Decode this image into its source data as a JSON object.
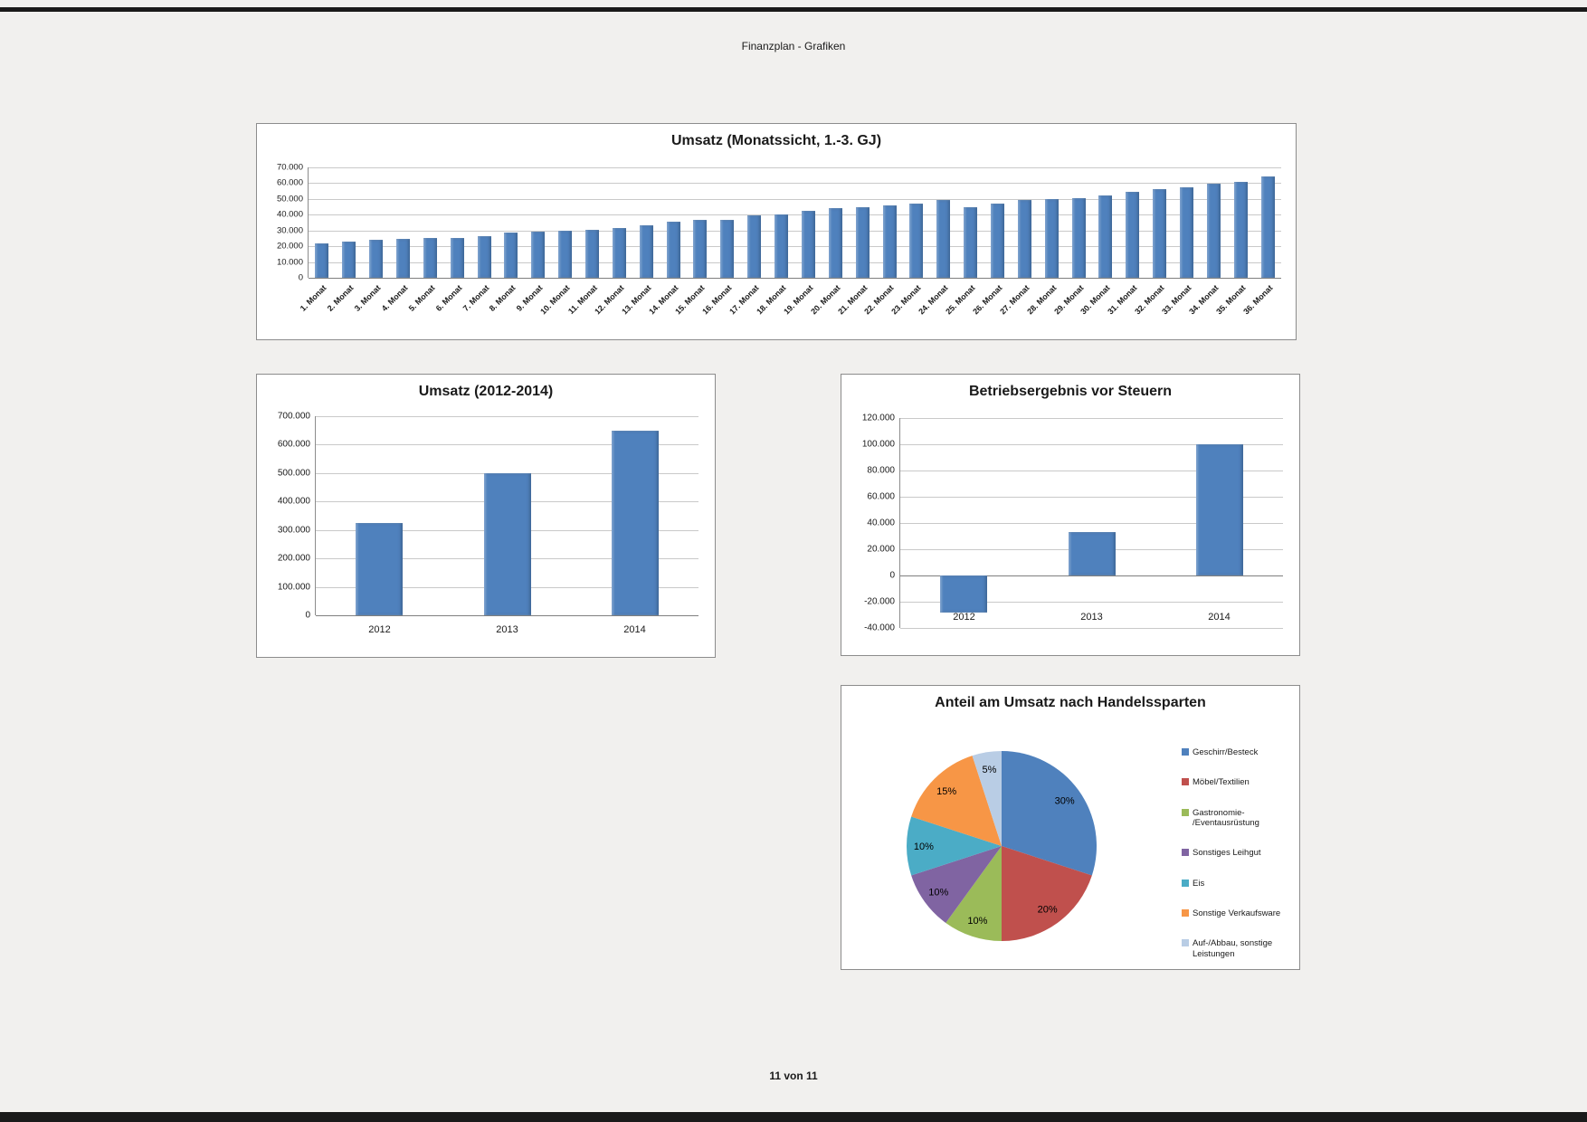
{
  "page": {
    "header_title": "Finanzplan - Grafiken",
    "footer_text": "11 von 11",
    "background_color": "#f1f0ee",
    "rule_color": "#1a1a1a",
    "accent_bar_color": "#4f81bd"
  },
  "chart_data": [
    {
      "id": "umsatz-monthly",
      "type": "bar",
      "title": "Umsatz (Monatssicht, 1.-3. GJ)",
      "categories": [
        "1. Monat",
        "2. Monat",
        "3. Monat",
        "4. Monat",
        "5. Monat",
        "6. Monat",
        "7. Monat",
        "8. Monat",
        "9. Monat",
        "10. Monat",
        "11. Monat",
        "12. Monat",
        "13. Monat",
        "14. Monat",
        "15. Monat",
        "16. Monat",
        "17. Monat",
        "18. Monat",
        "19. Monat",
        "20. Monat",
        "21. Monat",
        "22. Monat",
        "23. Monat",
        "24. Monat",
        "25. Monat",
        "26. Monat",
        "27. Monat",
        "28. Monat",
        "29. Monat",
        "30. Monat",
        "31. Monat",
        "32. Monat",
        "33. Monat",
        "34. Monat",
        "35. Monat",
        "36. Monat"
      ],
      "values": [
        22000,
        23000,
        24000,
        24500,
        25000,
        25500,
        26500,
        28500,
        29500,
        30000,
        30500,
        31500,
        33500,
        35500,
        36500,
        37000,
        39500,
        40000,
        42500,
        44000,
        44500,
        46000,
        47000,
        49500,
        45000,
        47000,
        49500,
        50000,
        50500,
        52500,
        54500,
        56000,
        57500,
        59500,
        61000,
        64500
      ],
      "ylim": [
        0,
        70000
      ],
      "ytick_step": 10000,
      "ytick_labels": [
        "70.000",
        "60.000",
        "50.000",
        "40.000",
        "30.000",
        "20.000",
        "10.000",
        "0"
      ],
      "grid": true,
      "legend": false,
      "bar_color": "#4f81bd",
      "x_label_rotation": -45
    },
    {
      "id": "umsatz-yearly",
      "type": "bar",
      "title": "Umsatz (2012-2014)",
      "categories": [
        "2012",
        "2013",
        "2014"
      ],
      "values": [
        325000,
        500000,
        650000
      ],
      "ylim": [
        0,
        700000
      ],
      "ytick_step": 100000,
      "ytick_labels": [
        "700.000",
        "600.000",
        "500.000",
        "400.000",
        "300.000",
        "200.000",
        "100.000",
        "0"
      ],
      "grid": true,
      "legend": false,
      "bar_color": "#4f81bd",
      "x_label_rotation": 0
    },
    {
      "id": "betriebsergebnis-vor-steuern",
      "type": "bar",
      "title": "Betriebsergebnis vor Steuern",
      "categories": [
        "2012",
        "2013",
        "2014"
      ],
      "values": [
        -28000,
        33000,
        100000
      ],
      "ylim": [
        -40000,
        120000
      ],
      "ytick_step": 20000,
      "ytick_labels": [
        "120.000",
        "100.000",
        "80.000",
        "60.000",
        "40.000",
        "20.000",
        "0",
        "-20.000",
        "-40.000"
      ],
      "grid": true,
      "legend": false,
      "bar_color": "#4f81bd",
      "x_label_rotation": 0
    },
    {
      "id": "anteil-umsatz-handelssparten",
      "type": "pie",
      "title": "Anteil am Umsatz nach Handelssparten",
      "legend_position": "right",
      "slices": [
        {
          "label": "Geschirr/Besteck",
          "value": 30,
          "percent_label": "30%",
          "color": "#4f81bd"
        },
        {
          "label": "Möbel/Textilien",
          "value": 20,
          "percent_label": "20%",
          "color": "#c0504d"
        },
        {
          "label": "Gastronomie-/Eventausrüstung",
          "value": 10,
          "percent_label": "10%",
          "color": "#9bbb59",
          "legend_lines": [
            "Gastronomie-",
            "/Eventausrüstung"
          ]
        },
        {
          "label": "Sonstiges Leihgut",
          "value": 10,
          "percent_label": "10%",
          "color": "#8064a2"
        },
        {
          "label": "Eis",
          "value": 10,
          "percent_label": "10%",
          "color": "#4bacc6"
        },
        {
          "label": "Sonstige Verkaufsware",
          "value": 15,
          "percent_label": "15%",
          "color": "#f79646"
        },
        {
          "label": "Auf-/Abbau, sonstige Leistungen",
          "value": 5,
          "percent_label": "5%",
          "color": "#b9cde5",
          "legend_lines": [
            "Auf-/Abbau, sonstige",
            "Leistungen"
          ]
        }
      ]
    }
  ]
}
